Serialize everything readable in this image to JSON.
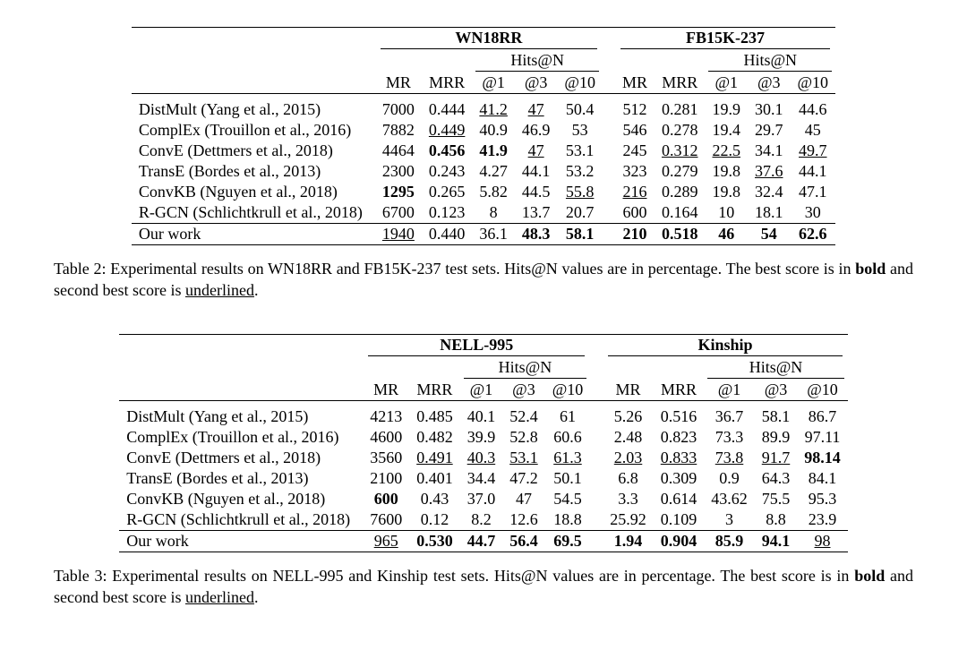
{
  "table2": {
    "datasets": [
      "WN18RR",
      "FB15K-237"
    ],
    "hits_label": "Hits@N",
    "col_labels": [
      "MR",
      "MRR",
      "@1",
      "@3",
      "@10"
    ],
    "methods": [
      "DistMult (Yang et al., 2015)",
      "ComplEx (Trouillon et al., 2016)",
      "ConvE (Dettmers et al., 2018)",
      "TransE (Bordes et al., 2013)",
      "ConvKB (Nguyen et al., 2018)",
      "R-GCN (Schlichtkrull et al., 2018)",
      "Our work"
    ],
    "values": [
      [
        [
          "7000",
          ""
        ],
        [
          "0.444",
          ""
        ],
        [
          "41.2",
          "ul"
        ],
        [
          "47",
          "ul"
        ],
        [
          "50.4",
          ""
        ],
        [
          "512",
          ""
        ],
        [
          "0.281",
          ""
        ],
        [
          "19.9",
          ""
        ],
        [
          "30.1",
          ""
        ],
        [
          "44.6",
          ""
        ]
      ],
      [
        [
          "7882",
          ""
        ],
        [
          "0.449",
          "ul"
        ],
        [
          "40.9",
          ""
        ],
        [
          "46.9",
          ""
        ],
        [
          "53",
          ""
        ],
        [
          "546",
          ""
        ],
        [
          "0.278",
          ""
        ],
        [
          "19.4",
          ""
        ],
        [
          "29.7",
          ""
        ],
        [
          "45",
          ""
        ]
      ],
      [
        [
          "4464",
          ""
        ],
        [
          "0.456",
          "bold"
        ],
        [
          "41.9",
          "bold"
        ],
        [
          "47",
          "ul"
        ],
        [
          "53.1",
          ""
        ],
        [
          "245",
          ""
        ],
        [
          "0.312",
          "ul"
        ],
        [
          "22.5",
          "ul"
        ],
        [
          "34.1",
          ""
        ],
        [
          "49.7",
          "ul"
        ]
      ],
      [
        [
          "2300",
          ""
        ],
        [
          "0.243",
          ""
        ],
        [
          "4.27",
          ""
        ],
        [
          "44.1",
          ""
        ],
        [
          "53.2",
          ""
        ],
        [
          "323",
          ""
        ],
        [
          "0.279",
          ""
        ],
        [
          "19.8",
          ""
        ],
        [
          "37.6",
          "ul"
        ],
        [
          "44.1",
          ""
        ]
      ],
      [
        [
          "1295",
          "bold"
        ],
        [
          "0.265",
          ""
        ],
        [
          "5.82",
          ""
        ],
        [
          "44.5",
          ""
        ],
        [
          "55.8",
          "ul"
        ],
        [
          "216",
          "ul"
        ],
        [
          "0.289",
          ""
        ],
        [
          "19.8",
          ""
        ],
        [
          "32.4",
          ""
        ],
        [
          "47.1",
          ""
        ]
      ],
      [
        [
          "6700",
          ""
        ],
        [
          "0.123",
          ""
        ],
        [
          "8",
          ""
        ],
        [
          "13.7",
          ""
        ],
        [
          "20.7",
          ""
        ],
        [
          "600",
          ""
        ],
        [
          "0.164",
          ""
        ],
        [
          "10",
          ""
        ],
        [
          "18.1",
          ""
        ],
        [
          "30",
          ""
        ]
      ],
      [
        [
          "1940",
          "ul"
        ],
        [
          "0.440",
          ""
        ],
        [
          "36.1",
          ""
        ],
        [
          "48.3",
          "bold"
        ],
        [
          "58.1",
          "bold"
        ],
        [
          "210",
          "bold"
        ],
        [
          "0.518",
          "bold"
        ],
        [
          "46",
          "bold"
        ],
        [
          "54",
          "bold"
        ],
        [
          "62.6",
          "bold"
        ]
      ]
    ],
    "caption_num": "Table 2:",
    "caption_text": "Experimental results on WN18RR and FB15K-237 test sets. Hits@N values are in percentage. The best score is in ",
    "caption_bold": "bold",
    "caption_mid": " and second best score is ",
    "caption_ul": "underlined",
    "caption_end": "."
  },
  "table3": {
    "datasets": [
      "NELL-995",
      "Kinship"
    ],
    "hits_label": "Hits@N",
    "col_labels": [
      "MR",
      "MRR",
      "@1",
      "@3",
      "@10"
    ],
    "methods": [
      "DistMult (Yang et al., 2015)",
      "ComplEx (Trouillon et al., 2016)",
      "ConvE (Dettmers et al., 2018)",
      "TransE (Bordes et al., 2013)",
      "ConvKB (Nguyen et al., 2018)",
      "R-GCN (Schlichtkrull et al., 2018)",
      "Our work"
    ],
    "values": [
      [
        [
          "4213",
          ""
        ],
        [
          "0.485",
          ""
        ],
        [
          "40.1",
          ""
        ],
        [
          "52.4",
          ""
        ],
        [
          "61",
          ""
        ],
        [
          "5.26",
          ""
        ],
        [
          "0.516",
          ""
        ],
        [
          "36.7",
          ""
        ],
        [
          "58.1",
          ""
        ],
        [
          "86.7",
          ""
        ]
      ],
      [
        [
          "4600",
          ""
        ],
        [
          "0.482",
          ""
        ],
        [
          "39.9",
          ""
        ],
        [
          "52.8",
          ""
        ],
        [
          "60.6",
          ""
        ],
        [
          "2.48",
          ""
        ],
        [
          "0.823",
          ""
        ],
        [
          "73.3",
          ""
        ],
        [
          "89.9",
          ""
        ],
        [
          "97.11",
          ""
        ]
      ],
      [
        [
          "3560",
          ""
        ],
        [
          "0.491",
          "ul"
        ],
        [
          "40.3",
          "ul"
        ],
        [
          "53.1",
          "ul"
        ],
        [
          "61.3",
          "ul"
        ],
        [
          "2.03",
          "ul"
        ],
        [
          "0.833",
          "ul"
        ],
        [
          "73.8",
          "ul"
        ],
        [
          "91.7",
          "ul"
        ],
        [
          "98.14",
          "bold"
        ]
      ],
      [
        [
          "2100",
          ""
        ],
        [
          "0.401",
          ""
        ],
        [
          "34.4",
          ""
        ],
        [
          "47.2",
          ""
        ],
        [
          "50.1",
          ""
        ],
        [
          "6.8",
          ""
        ],
        [
          "0.309",
          ""
        ],
        [
          "0.9",
          ""
        ],
        [
          "64.3",
          ""
        ],
        [
          "84.1",
          ""
        ]
      ],
      [
        [
          "600",
          "bold"
        ],
        [
          "0.43",
          ""
        ],
        [
          "37.0",
          ""
        ],
        [
          "47",
          ""
        ],
        [
          "54.5",
          ""
        ],
        [
          "3.3",
          ""
        ],
        [
          "0.614",
          ""
        ],
        [
          "43.62",
          ""
        ],
        [
          "75.5",
          ""
        ],
        [
          "95.3",
          ""
        ]
      ],
      [
        [
          "7600",
          ""
        ],
        [
          "0.12",
          ""
        ],
        [
          "8.2",
          ""
        ],
        [
          "12.6",
          ""
        ],
        [
          "18.8",
          ""
        ],
        [
          "25.92",
          ""
        ],
        [
          "0.109",
          ""
        ],
        [
          "3",
          ""
        ],
        [
          "8.8",
          ""
        ],
        [
          "23.9",
          ""
        ]
      ],
      [
        [
          "965",
          "ul"
        ],
        [
          "0.530",
          "bold"
        ],
        [
          "44.7",
          "bold"
        ],
        [
          "56.4",
          "bold"
        ],
        [
          "69.5",
          "bold"
        ],
        [
          "1.94",
          "bold"
        ],
        [
          "0.904",
          "bold"
        ],
        [
          "85.9",
          "bold"
        ],
        [
          "94.1",
          "bold"
        ],
        [
          "98",
          "ul"
        ]
      ]
    ],
    "caption_num": "Table 3:",
    "caption_text": "Experimental results on NELL-995 and Kinship test sets. Hits@N values are in percentage. The best score is in ",
    "caption_bold": "bold",
    "caption_mid": " and second best score is ",
    "caption_ul": "underlined",
    "caption_end": "."
  }
}
